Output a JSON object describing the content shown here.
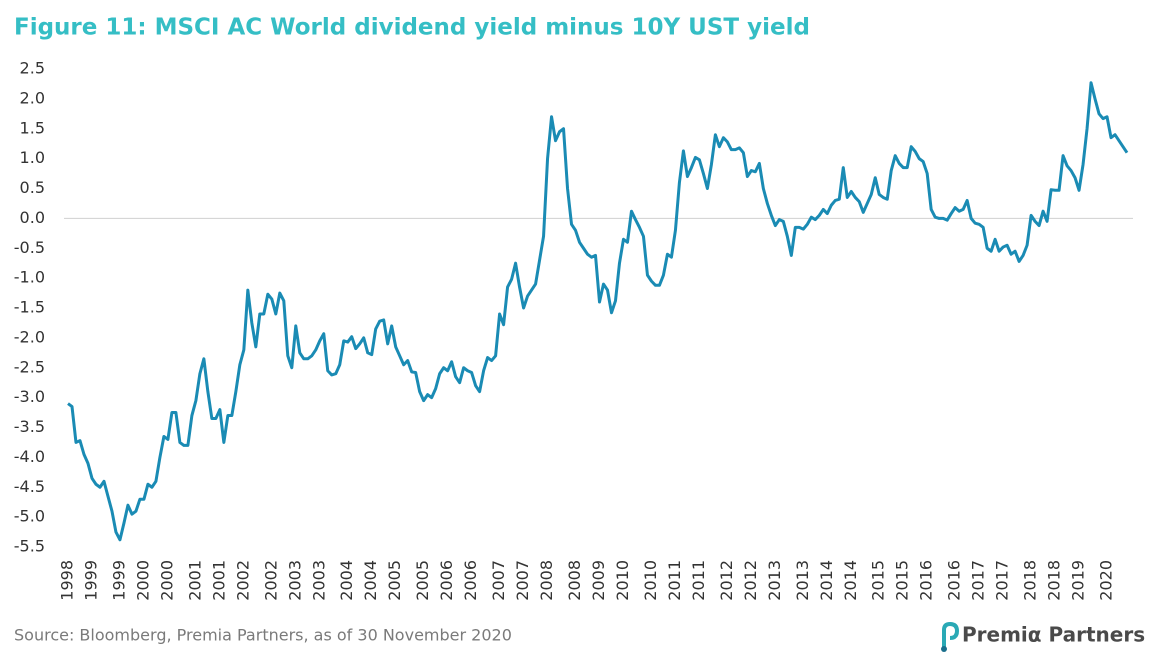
{
  "chart_data": {
    "type": "line",
    "title": "Figure 11: MSCI AC World dividend yield minus 10Y UST yield",
    "categories": [
      "1998",
      null,
      null,
      null,
      null,
      null,
      "1999",
      null,
      null,
      null,
      null,
      null,
      null,
      "1999",
      null,
      null,
      null,
      null,
      null,
      "2000",
      null,
      null,
      null,
      null,
      null,
      "2000",
      null,
      null,
      null,
      null,
      null,
      null,
      "2001",
      null,
      null,
      null,
      null,
      null,
      "2001",
      null,
      null,
      null,
      null,
      null,
      "2002",
      null,
      null,
      null,
      null,
      null,
      null,
      "2002",
      null,
      null,
      null,
      null,
      null,
      "2003",
      null,
      null,
      null,
      null,
      null,
      "2003",
      null,
      null,
      null,
      null,
      null,
      null,
      "2004",
      null,
      null,
      null,
      null,
      null,
      "2004",
      null,
      null,
      null,
      null,
      null,
      "2005",
      null,
      null,
      null,
      null,
      null,
      null,
      "2005",
      null,
      null,
      null,
      null,
      null,
      "2006",
      null,
      null,
      null,
      null,
      null,
      "2006",
      null,
      null,
      null,
      null,
      null,
      null,
      "2007",
      null,
      null,
      null,
      null,
      null,
      "2007",
      null,
      null,
      null,
      null,
      null,
      "2008",
      null,
      null,
      null,
      null,
      null,
      null,
      "2008",
      null,
      null,
      null,
      null,
      null,
      "2009",
      null,
      null,
      null,
      null,
      null,
      "2010",
      null,
      null,
      null,
      null,
      null,
      null,
      "2010",
      null,
      null,
      null,
      null,
      null,
      "2011",
      null,
      null,
      null,
      null,
      null,
      "2011",
      null,
      null,
      null,
      null,
      null,
      null,
      "2012",
      null,
      null,
      null,
      null,
      null,
      "2012",
      null,
      null,
      null,
      null,
      null,
      "2013",
      null,
      null,
      null,
      null,
      null,
      null,
      "2013",
      null,
      null,
      null,
      null,
      null,
      "2014",
      null,
      null,
      null,
      null,
      null,
      "2014",
      null,
      null,
      null,
      null,
      null,
      null,
      "2015",
      null,
      null,
      null,
      null,
      null,
      "2015",
      null,
      null,
      null,
      null,
      null,
      "2016",
      null,
      null,
      null,
      null,
      null,
      null,
      "2016",
      null,
      null,
      null,
      null,
      null,
      "2017",
      null,
      null,
      null,
      null,
      null,
      "2017",
      null,
      null,
      null,
      null,
      null,
      null,
      "2018",
      null,
      null,
      null,
      null,
      null,
      "2018",
      null,
      null,
      null,
      null,
      null,
      "2019",
      null,
      null,
      null,
      null,
      null,
      null,
      "2020",
      null,
      null,
      null,
      null,
      null
    ],
    "values": [
      -3.1,
      -3.15,
      -3.75,
      -3.72,
      -3.95,
      -4.1,
      -4.35,
      -4.45,
      -4.5,
      -4.4,
      -4.65,
      -4.9,
      -5.25,
      -5.38,
      -5.1,
      -4.8,
      -4.95,
      -4.9,
      -4.7,
      -4.7,
      -4.45,
      -4.5,
      -4.4,
      -4.0,
      -3.65,
      -3.7,
      -3.25,
      -3.25,
      -3.75,
      -3.8,
      -3.8,
      -3.3,
      -3.05,
      -2.6,
      -2.35,
      -2.9,
      -3.35,
      -3.35,
      -3.2,
      -3.75,
      -3.3,
      -3.3,
      -2.9,
      -2.45,
      -2.2,
      -1.2,
      -1.75,
      -2.15,
      -1.6,
      -1.6,
      -1.27,
      -1.35,
      -1.6,
      -1.25,
      -1.38,
      -2.3,
      -2.5,
      -1.8,
      -2.25,
      -2.35,
      -2.35,
      -2.3,
      -2.2,
      -2.05,
      -1.93,
      -2.55,
      -2.62,
      -2.6,
      -2.45,
      -2.05,
      -2.07,
      -1.98,
      -2.18,
      -2.1,
      -2.0,
      -2.25,
      -2.28,
      -1.85,
      -1.72,
      -1.7,
      -2.1,
      -1.8,
      -2.15,
      -2.3,
      -2.45,
      -2.38,
      -2.57,
      -2.58,
      -2.9,
      -3.05,
      -2.95,
      -3.0,
      -2.85,
      -2.6,
      -2.5,
      -2.55,
      -2.4,
      -2.65,
      -2.75,
      -2.5,
      -2.55,
      -2.58,
      -2.8,
      -2.9,
      -2.55,
      -2.33,
      -2.38,
      -2.3,
      -1.6,
      -1.78,
      -1.15,
      -1.02,
      -0.75,
      -1.15,
      -1.5,
      -1.3,
      -1.2,
      -1.1,
      -0.7,
      -0.3,
      1.0,
      1.7,
      1.3,
      1.45,
      1.5,
      0.5,
      -0.1,
      -0.2,
      -0.4,
      -0.5,
      -0.6,
      -0.65,
      -0.62,
      -1.4,
      -1.1,
      -1.2,
      -1.58,
      -1.38,
      -0.75,
      -0.35,
      -0.4,
      0.12,
      -0.02,
      -0.15,
      -0.3,
      -0.95,
      -1.05,
      -1.12,
      -1.12,
      -0.95,
      -0.6,
      -0.65,
      -0.2,
      0.6,
      1.13,
      0.7,
      0.85,
      1.02,
      0.98,
      0.75,
      0.5,
      0.9,
      1.4,
      1.2,
      1.35,
      1.28,
      1.15,
      1.15,
      1.18,
      1.1,
      0.7,
      0.8,
      0.78,
      0.92,
      0.5,
      0.25,
      0.05,
      -0.12,
      -0.02,
      -0.05,
      -0.3,
      -0.62,
      -0.15,
      -0.15,
      -0.18,
      -0.1,
      0.02,
      -0.02,
      0.05,
      0.15,
      0.08,
      0.22,
      0.3,
      0.32,
      0.85,
      0.35,
      0.45,
      0.35,
      0.28,
      0.1,
      0.25,
      0.4,
      0.68,
      0.4,
      0.35,
      0.32,
      0.8,
      1.05,
      0.92,
      0.85,
      0.85,
      1.2,
      1.12,
      1.0,
      0.95,
      0.75,
      0.15,
      0.02,
      0.0,
      0.0,
      -0.03,
      0.08,
      0.18,
      0.12,
      0.15,
      0.3,
      0.0,
      -0.08,
      -0.1,
      -0.15,
      -0.5,
      -0.55,
      -0.35,
      -0.55,
      -0.48,
      -0.45,
      -0.6,
      -0.55,
      -0.72,
      -0.62,
      -0.45,
      0.05,
      -0.05,
      -0.12,
      0.12,
      -0.05,
      0.48,
      0.47,
      0.47,
      1.05,
      0.88,
      0.8,
      0.68,
      0.47,
      0.9,
      1.5,
      2.27,
      2.0,
      1.75,
      1.67,
      1.7,
      1.35,
      1.4,
      1.3,
      1.2,
      1.1
    ],
    "color": "#1a8bb4",
    "ylim": [
      -5.5,
      2.5
    ],
    "yticks": [
      2.5,
      {
        "value": 2,
        "label": "2.0"
      },
      1.5,
      {
        "value": 1,
        "label": "1.0"
      },
      0.5,
      {
        "value": 0,
        "label": "0.0"
      },
      -0.5,
      {
        "value": -1,
        "label": "-1.0"
      },
      -1.5,
      {
        "value": -2,
        "label": "-2.0"
      },
      -2.5,
      {
        "value": -3,
        "label": "-3.0"
      },
      -3.5,
      {
        "value": -4,
        "label": "-4.0"
      },
      -4.5,
      {
        "value": -5,
        "label": "-5.0"
      },
      -5.5
    ],
    "grid": false
  },
  "source": "Source: Bloomberg, Premia Partners, as of 30 November 2020",
  "logo": "Premiα Partners"
}
